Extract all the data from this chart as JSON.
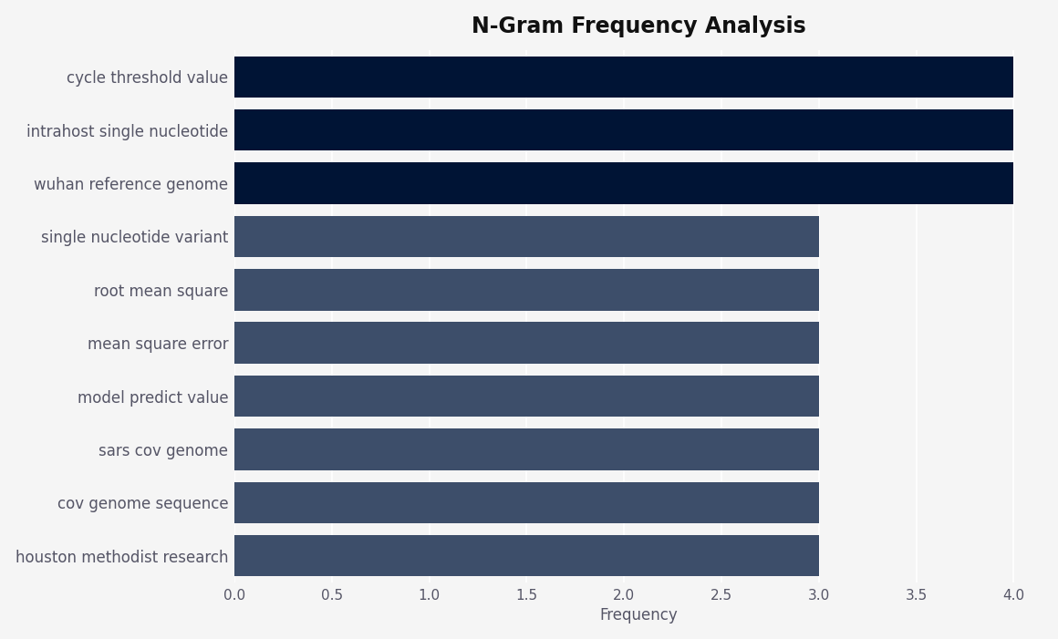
{
  "title": "N-Gram Frequency Analysis",
  "xlabel": "Frequency",
  "categories": [
    "houston methodist research",
    "cov genome sequence",
    "sars cov genome",
    "model predict value",
    "mean square error",
    "root mean square",
    "single nucleotide variant",
    "wuhan reference genome",
    "intrahost single nucleotide",
    "cycle threshold value"
  ],
  "values": [
    3,
    3,
    3,
    3,
    3,
    3,
    3,
    4,
    4,
    4
  ],
  "bar_colors": [
    "#3d4e6a",
    "#3d4e6a",
    "#3d4e6a",
    "#3d4e6a",
    "#3d4e6a",
    "#3d4e6a",
    "#3d4e6a",
    "#001435",
    "#001435",
    "#001435"
  ],
  "background_color": "#f5f5f5",
  "plot_bg_color": "#f5f5f5",
  "xlim": [
    0,
    4.15
  ],
  "xticks": [
    0.0,
    0.5,
    1.0,
    1.5,
    2.0,
    2.5,
    3.0,
    3.5,
    4.0
  ],
  "title_fontsize": 17,
  "label_fontsize": 12,
  "tick_fontsize": 11,
  "ytick_fontsize": 12,
  "bar_height": 0.78,
  "tick_color": "#555566"
}
